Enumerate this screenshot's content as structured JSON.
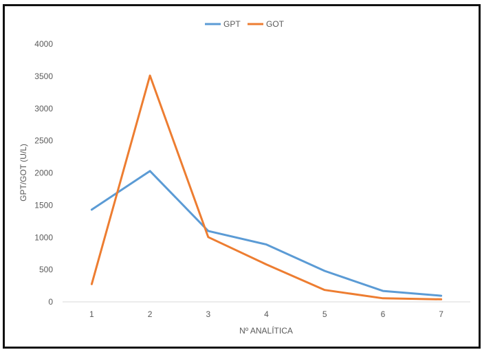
{
  "chart_data": {
    "type": "line",
    "title": "",
    "xlabel": "Nº ANALÍTICA",
    "ylabel": "GPT/GOT (U/L)",
    "categories": [
      "1",
      "2",
      "3",
      "4",
      "5",
      "6",
      "7"
    ],
    "ylim": [
      0,
      4000
    ],
    "yticks": [
      0,
      500,
      1000,
      1500,
      2000,
      2500,
      3000,
      3500,
      4000
    ],
    "grid": false,
    "legend_position": "top-center",
    "series": [
      {
        "name": "GPT",
        "color": "#5b9bd5",
        "values": [
          1430,
          2030,
          1100,
          890,
          480,
          170,
          95
        ]
      },
      {
        "name": "GOT",
        "color": "#ed7d31",
        "values": [
          275,
          3510,
          1005,
          580,
          185,
          55,
          40
        ]
      }
    ]
  }
}
